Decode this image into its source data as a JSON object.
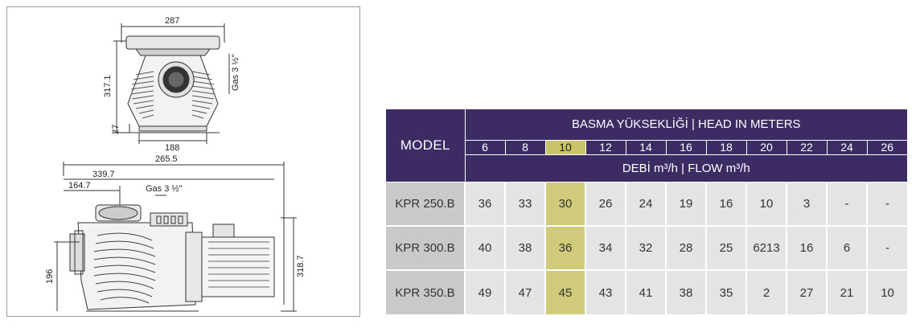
{
  "drawing": {
    "top_view": {
      "width_label": "287",
      "height_label": "317.1",
      "base_label": "188",
      "foot_label": "27",
      "port_label": "Gas 3 ½\""
    },
    "side_view": {
      "overall_label": "265.5",
      "length_label": "339.7",
      "inlet_offset_label": "164.7",
      "port_label": "Gas 3 ½\"",
      "height_left_label": "196",
      "height_right_label": "318.7"
    }
  },
  "table": {
    "model_header": "MODEL",
    "head_header_tr": "BASMA YÜKSEKLİĞİ",
    "head_header_sep": " | ",
    "head_header_en": "HEAD IN METERS",
    "heads": [
      "6",
      "8",
      "10",
      "12",
      "14",
      "16",
      "18",
      "20",
      "22",
      "24",
      "26"
    ],
    "highlight_index": 2,
    "flow_header_tr": "DEBİ m³/h",
    "flow_header_sep": " | ",
    "flow_header_en": "FLOW m³/h",
    "rows": [
      {
        "model": "KPR 250.B",
        "values": [
          "36",
          "33",
          "30",
          "26",
          "24",
          "19",
          "16",
          "10",
          "3",
          "-",
          "-"
        ]
      },
      {
        "model": "KPR 300.B",
        "values": [
          "40",
          "38",
          "36",
          "34",
          "32",
          "28",
          "25",
          "6213",
          "16",
          "6",
          "-"
        ]
      },
      {
        "model": "KPR 350.B",
        "values": [
          "49",
          "47",
          "45",
          "43",
          "41",
          "38",
          "35",
          "2",
          "27",
          "21",
          "10"
        ]
      }
    ],
    "colors": {
      "header": "#3d2b63",
      "highlight": "#c9c46a",
      "cell": "#e4e4e4",
      "model_cell": "#c9c9c9"
    }
  }
}
